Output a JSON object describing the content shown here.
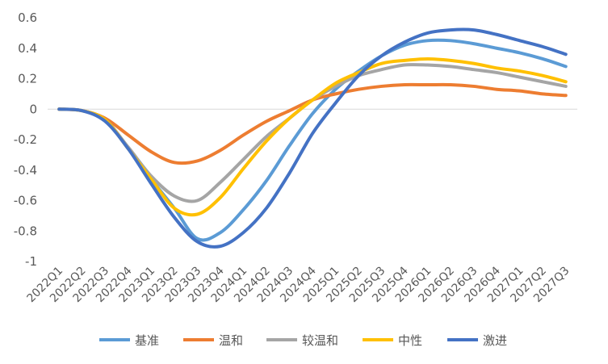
{
  "chart_data": {
    "type": "line",
    "title": "",
    "xlabel": "",
    "ylabel": "",
    "ylim": [
      -1,
      0.6
    ],
    "yticks": [
      0.6,
      0.4,
      0.2,
      0,
      -0.2,
      -0.4,
      -0.6,
      -0.8,
      -1
    ],
    "ytick_labels": [
      "0.6",
      "0.4",
      "0.2",
      "0",
      "-0.2",
      "-0.4",
      "-0.6",
      "-0.8",
      "-1"
    ],
    "grid": false,
    "legend_position": "bottom",
    "categories": [
      "2022Q1",
      "2022Q2",
      "2022Q3",
      "2022Q4",
      "2023Q1",
      "2023Q2",
      "2023Q3",
      "2023Q4",
      "2024Q1",
      "2024Q2",
      "2024Q3",
      "2024Q4",
      "2025Q1",
      "2025Q2",
      "2025Q3",
      "2025Q4",
      "2026Q1",
      "2026Q2",
      "2026Q3",
      "2026Q4",
      "2027Q1",
      "2027Q2",
      "2027Q3"
    ],
    "series": [
      {
        "name": "基准",
        "color": "#5B9BD5",
        "values": [
          0,
          -0.01,
          -0.07,
          -0.26,
          -0.46,
          -0.65,
          -0.85,
          -0.81,
          -0.66,
          -0.47,
          -0.24,
          -0.03,
          0.13,
          0.25,
          0.35,
          0.42,
          0.45,
          0.45,
          0.43,
          0.4,
          0.37,
          0.33,
          0.28
        ]
      },
      {
        "name": "温和",
        "color": "#ED7D31",
        "values": [
          0,
          -0.01,
          -0.06,
          -0.17,
          -0.28,
          -0.35,
          -0.34,
          -0.27,
          -0.17,
          -0.08,
          -0.01,
          0.06,
          0.1,
          0.13,
          0.15,
          0.16,
          0.16,
          0.16,
          0.15,
          0.13,
          0.12,
          0.1,
          0.09
        ]
      },
      {
        "name": "较温和",
        "color": "#A5A5A5",
        "values": [
          0,
          -0.01,
          -0.07,
          -0.25,
          -0.44,
          -0.57,
          -0.6,
          -0.48,
          -0.33,
          -0.18,
          -0.06,
          0.06,
          0.15,
          0.22,
          0.26,
          0.29,
          0.29,
          0.28,
          0.26,
          0.24,
          0.21,
          0.18,
          0.15
        ]
      },
      {
        "name": "中性",
        "color": "#FFC000",
        "values": [
          0,
          -0.01,
          -0.07,
          -0.26,
          -0.46,
          -0.65,
          -0.69,
          -0.58,
          -0.39,
          -0.21,
          -0.06,
          0.06,
          0.17,
          0.24,
          0.3,
          0.32,
          0.33,
          0.32,
          0.3,
          0.27,
          0.25,
          0.22,
          0.18
        ]
      },
      {
        "name": "激进",
        "color": "#4472C4",
        "values": [
          0,
          -0.01,
          -0.08,
          -0.26,
          -0.49,
          -0.71,
          -0.87,
          -0.9,
          -0.81,
          -0.65,
          -0.42,
          -0.16,
          0.04,
          0.22,
          0.35,
          0.44,
          0.5,
          0.52,
          0.52,
          0.49,
          0.45,
          0.41,
          0.36
        ]
      }
    ]
  }
}
